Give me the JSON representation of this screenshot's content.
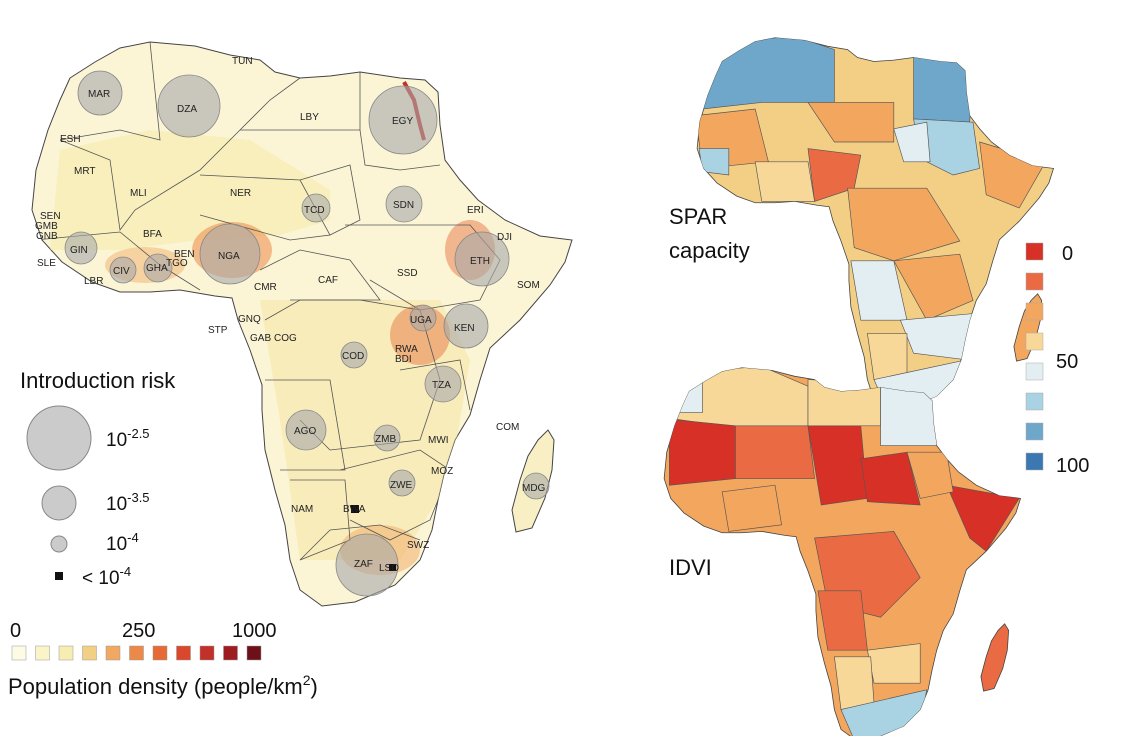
{
  "main_map": {
    "country_codes": [
      "TUN",
      "MAR",
      "DZA",
      "LBY",
      "EGY",
      "ESH",
      "MRT",
      "MLI",
      "NER",
      "TCD",
      "SDN",
      "ERI",
      "DJI",
      "SEN",
      "GMB",
      "GNB",
      "GIN",
      "SLE",
      "LBR",
      "CIV",
      "BFA",
      "GHA",
      "TGO",
      "BEN",
      "NGA",
      "CMR",
      "CAF",
      "SSD",
      "ETH",
      "SOM",
      "STP",
      "GNQ",
      "GAB",
      "COG",
      "COD",
      "UGA",
      "KEN",
      "RWA",
      "BDI",
      "TZA",
      "AGO",
      "ZMB",
      "MWI",
      "COM",
      "MOZ",
      "ZWE",
      "MDG",
      "NAM",
      "BWA",
      "ZAF",
      "SWZ",
      "LSO"
    ]
  },
  "risk_legend": {
    "title": "Introduction risk",
    "items": [
      {
        "base": "10",
        "exp": "-2.5"
      },
      {
        "base": "10",
        "exp": "-3.5"
      },
      {
        "base": "10",
        "exp": "-4"
      },
      {
        "base": "< 10",
        "exp": "-4"
      }
    ]
  },
  "density_legend": {
    "tick_labels": [
      "0",
      "250",
      "1000"
    ],
    "title": "Population density (people/km",
    "title_sup": "2",
    "title_end": ")",
    "colors": [
      "#fdfbe6",
      "#fbf4c9",
      "#f7ecb1",
      "#f3cf86",
      "#f0a862",
      "#ec8848",
      "#e56a36",
      "#d9482a",
      "#c2302a",
      "#9c1c1f",
      "#6e1018"
    ]
  },
  "spar_map": {
    "label_line1": "SPAR",
    "label_line2": "capacity"
  },
  "idvi_map": {
    "label": "IDVI"
  },
  "score_legend": {
    "labels": [
      "0",
      "50",
      "100"
    ],
    "colors": [
      "#d73027",
      "#ea6b43",
      "#f3a65d",
      "#f7d898",
      "#e3eef3",
      "#a9d2e2",
      "#6fa7cb",
      "#3b78b1"
    ]
  }
}
